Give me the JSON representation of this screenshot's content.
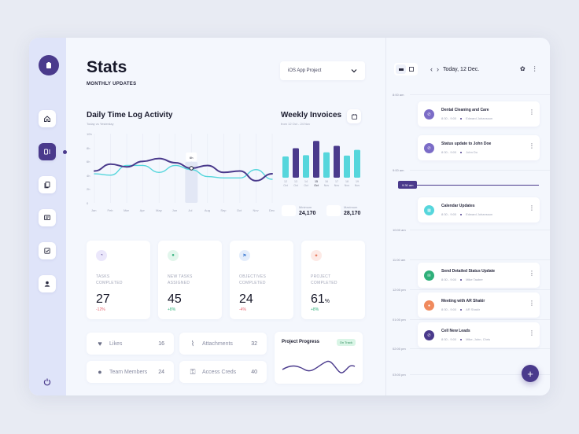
{
  "header": {
    "title": "Stats",
    "subtitle": "MONTHLY UPDATES",
    "project_select": "iOS App Project"
  },
  "sidebar": {
    "items": [
      {
        "icon": "home-icon"
      },
      {
        "icon": "dashboard-icon",
        "active": true
      },
      {
        "icon": "documents-icon"
      },
      {
        "icon": "messages-icon"
      },
      {
        "icon": "tasks-icon"
      },
      {
        "icon": "user-icon"
      }
    ]
  },
  "time_log": {
    "title": "Daily Time Log Activity",
    "subtitle": "Today vs Yesterday",
    "y_ticks": [
      "10h",
      "8h",
      "6h",
      "4h",
      "2h",
      "0"
    ],
    "x_ticks": [
      "Jan",
      "Feb",
      "Mar",
      "Apr",
      "May",
      "Jun",
      "Jul",
      "Aug",
      "Sep",
      "Oct",
      "Nov",
      "Dec"
    ],
    "tooltip_value": "6h",
    "chart_data": {
      "type": "line",
      "title": "Daily Time Log Activity",
      "subtitle": "Today vs Yesterday",
      "categories": [
        "Jan",
        "Feb",
        "Mar",
        "Apr",
        "May",
        "Jun",
        "Jul",
        "Aug",
        "Sep",
        "Oct",
        "Nov",
        "Dec"
      ],
      "ylim": [
        0,
        10
      ],
      "series": [
        {
          "values": [
            4.6,
            5.6,
            5.2,
            6.0,
            6.4,
            5.8,
            5.0,
            5.4,
            4.4,
            4.6,
            3.2,
            4.2
          ],
          "color": "#4a3a8c"
        },
        {
          "values": [
            4.2,
            4.0,
            5.4,
            5.4,
            4.4,
            5.4,
            4.8,
            3.8,
            3.6,
            3.6,
            4.8,
            3.4
          ],
          "color": "#56d6dc"
        }
      ]
    }
  },
  "invoices": {
    "title": "Weekly Invoices",
    "subtitle": "from 12 Oct - 24 Nov",
    "chart_data": {
      "type": "bar",
      "title": "Weekly Invoices",
      "subtitle": "from 12 Oct - 24 Nov",
      "categories": [
        "12 Oct",
        "13 Oct",
        "14 Oct",
        "15 Oct",
        "16 Nov",
        "17 Nov",
        "18 Nov",
        "19 Nov"
      ],
      "ylim": [
        0,
        1
      ],
      "values": [
        0.52,
        0.72,
        0.55,
        0.9,
        0.62,
        0.78,
        0.54,
        0.68
      ],
      "colors": [
        "#56d6dc",
        "#4a3a8c",
        "#56d6dc",
        "#4a3a8c",
        "#56d6dc",
        "#4a3a8c",
        "#56d6dc",
        "#56d6dc"
      ]
    },
    "minimum_label": "Minimum",
    "minimum_value": "24,170",
    "maximum_label": "Maximum",
    "maximum_value": "28,170"
  },
  "cards": [
    {
      "label_line1": "TASKS",
      "label_line2": "COMPLETED",
      "value": "27",
      "unit": "",
      "change": "-12%",
      "change_color": "#e45f6a",
      "icon_bg": "#ebe7fb",
      "icon_color": "#4a3a8c"
    },
    {
      "label_line1": "NEW TASKS",
      "label_line2": "ASSIGNED",
      "value": "45",
      "unit": "",
      "change": "+8%",
      "change_color": "#2fb07a",
      "icon_bg": "#e2f6ec",
      "icon_color": "#2fb07a"
    },
    {
      "label_line1": "OBJECTIVES",
      "label_line2": "COMPLETED",
      "value": "24",
      "unit": "",
      "change": "-4%",
      "change_color": "#e45f6a",
      "icon_bg": "#e4edfb",
      "icon_color": "#4b84d6"
    },
    {
      "label_line1": "PROJECT",
      "label_line2": "COMPLETED",
      "value": "61",
      "unit": "%",
      "change": "+8%",
      "change_color": "#2fb07a",
      "icon_bg": "#fdeae6",
      "icon_color": "#e46a4a"
    }
  ],
  "pills": [
    {
      "label": "Likes",
      "count": "16"
    },
    {
      "label": "Attachments",
      "count": "32"
    },
    {
      "label": "Team Members",
      "count": "24"
    },
    {
      "label": "Access Creds",
      "count": "40"
    }
  ],
  "project_progress": {
    "title": "Project Progress",
    "badge": "On Track"
  },
  "calendar": {
    "date": "Today, 12 Dec.",
    "times": [
      "8:00 am",
      "9:00 am",
      "10:00 am",
      "11:00 am",
      "12:00 pm",
      "01:00 pm",
      "02:00 pm",
      "03:00 pm"
    ],
    "now": "9:30 am",
    "events": [
      {
        "title": "Dental Cleaning and Care",
        "time": "8:30 - 9:00",
        "people": "Edward Johansson",
        "icon_bg": "#7b6cc7"
      },
      {
        "title": "Status update to John Doe",
        "time": "8:30 - 9:00",
        "people": "John Do",
        "icon_bg": "#7b6cc7"
      },
      {
        "title": "Calendar Updates",
        "time": "8:30 - 9:00",
        "people": "Edward Johansson",
        "icon_bg": "#56d6dc"
      },
      {
        "title": "Send Detailed Status Update",
        "time": "8:30 - 9:00",
        "people": "Mike Tauber",
        "icon_bg": "#2fb07a"
      },
      {
        "title": "Meeting with AR Shakir",
        "time": "8:30 - 9:00",
        "people": "AR Shakir",
        "icon_bg": "#f08a5d"
      },
      {
        "title": "Cell New Leads",
        "time": "8:30 - 9:00",
        "people": "Mike, John, Chris",
        "icon_bg": "#4a3a8c"
      }
    ]
  }
}
